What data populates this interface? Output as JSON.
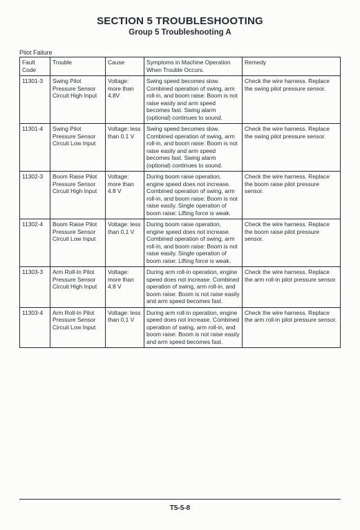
{
  "section_title": "SECTION 5 TROUBLESHOOTING",
  "group_title": "Group 5 Troubleshooting A",
  "table_label": "Pilot Failure",
  "page_number": "T5-5-8",
  "headers": {
    "c1": "Fault Code",
    "c2": "Trouble",
    "c3": "Cause",
    "c4": "Symptoms in Machine Operation When Trouble Occurs.",
    "c5": "Remedy"
  },
  "rows": [
    {
      "code": "11301-3",
      "trouble": "Swing Pilot Pressure Sensor Circuit High Input",
      "cause": "Voltage: more than 4.8V",
      "symptoms": "Swing speed becomes slow. Combined operation of swing, arm roll-in, and boom raise: Boom is not raise easily and arm speed becomes fast.\nSwing alarm (optional) continues to sound.",
      "remedy": "Check the wire harness. Replace the swing pilot pressure sensor."
    },
    {
      "code": "11301-4",
      "trouble": "Swing Pilot Pressure Sensor Circuit Low Input",
      "cause": "Voltage: less than 0.1 V",
      "symptoms": "Swing speed becomes slow. Combined operation of swing, arm roll-in, and boom raise: Boom is not raise easily and arm speed becomes fast.\nSwing alarm (optional) continues to sound.",
      "remedy": "Check the wire harness. Replace the swing pilot pressure sensor."
    },
    {
      "code": "11302-3",
      "trouble": "Boom Raise Pilot Pressure Sensor Circuit High Input",
      "cause": "Voltage: more than 4.8 V",
      "symptoms": "During boom raise operation, engine speed does not increase. Combined operation of swing, arm roll-in, and boom raise: Boom is not raise easily.\nSingle operation of boom raise: Lifting force is weak.",
      "remedy": "Check the wire harness. Replace the boom raise pilot pressure sensor."
    },
    {
      "code": "11302-4",
      "trouble": "Boom Raise Pilot Pressure Sensor Circuit Low Input",
      "cause": "Voltage: less than 0.1 V",
      "symptoms": "During boom raise operation, engine speed does not increase. Combined operation of swing, arm roll-in, and boom raise: Boom is not raise easily.\nSingle operation of boom raise: Lifting force is weak.",
      "remedy": "Check the wire harness. Replace the boom raise pilot pressure sensor."
    },
    {
      "code": "11303-3",
      "trouble": "Arm Roll-In Pilot Pressure Sensor Circuit High Input",
      "cause": "Voltage: more than 4.8 V",
      "symptoms": "During arm roll-in operation, engine speed does not increase. Combined operation of swing, arm roll-in, and boom raise: Boom is not raise easily and arm speed becomes fast.",
      "remedy": "Check the wire harness. Replace the arm roll-in pilot pressure sensor."
    },
    {
      "code": "11303-4",
      "trouble": "Arm Roll-In Pilot Pressure Sensor Circuit Low Input",
      "cause": "Voltage: less than 0.1 V",
      "symptoms": "During arm roll-in operation, engine speed does not increase. Combined operation of swing, arm roll-in, and boom raise: Boom is not raise easily and arm speed becomes fast.",
      "remedy": "Check the wire harness. Replace the arm roll-in pilot pressure sensor."
    }
  ]
}
